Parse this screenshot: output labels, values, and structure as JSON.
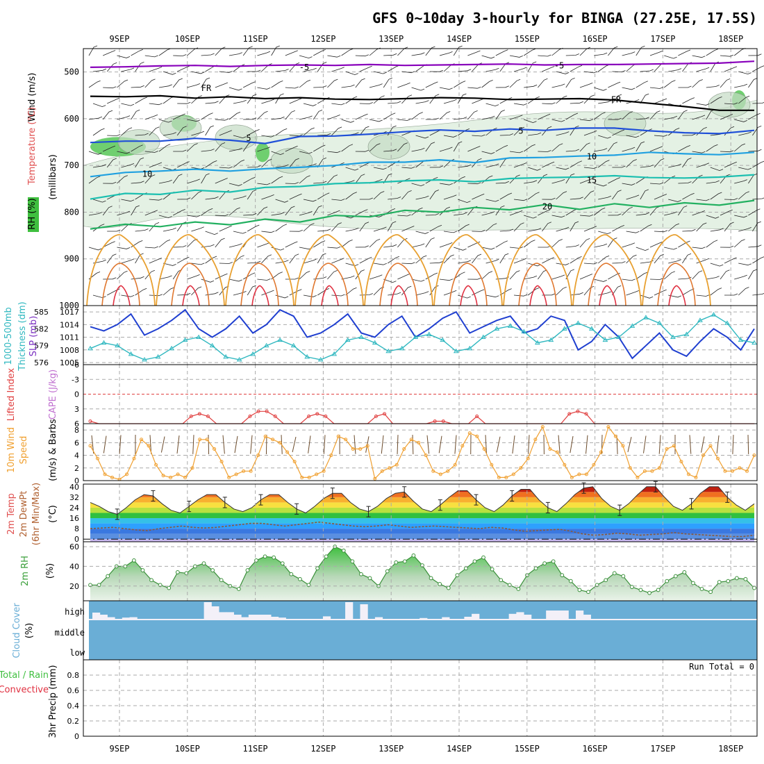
{
  "title": "GFS 0~10day 3-hourly for BINGA (27.25E, 17.5S)",
  "dates": [
    "9SEP",
    "10SEP",
    "11SEP",
    "12SEP",
    "13SEP",
    "14SEP",
    "15SEP",
    "16SEP",
    "17SEP",
    "18SEP"
  ],
  "colors": {
    "purple": "#8800bb",
    "black": "#000000",
    "blue5": "#1f4fd8",
    "blue10": "#1fa0e0",
    "teal15": "#1bbfb0",
    "green20": "#22b060",
    "orange": "#e8a030",
    "red": "#e03040",
    "slp": "#1f3fd0",
    "thick": "#30b8c0",
    "wind": "#f0a030",
    "rh": "#40b040",
    "cloud": "#6aaed6"
  },
  "chart_data": [
    {
      "name": "upper_air",
      "type": "heatmap",
      "ylabel_parts": [
        "Wind (m/s)",
        "Temperature (°C)",
        "RH (%)",
        "(millibars)"
      ],
      "yticks": [
        500,
        600,
        700,
        800,
        900,
        1000
      ],
      "ylim": [
        1000,
        450
      ],
      "contour_labels": [
        "-5",
        "FR",
        "5",
        "10",
        "15",
        "20"
      ],
      "isotherm_levels_mb": {
        "minus5": [
          490,
          489,
          487,
          486,
          488,
          486,
          485,
          486,
          484,
          486,
          485,
          484,
          483,
          485,
          484,
          484,
          483,
          482,
          481,
          477
        ],
        "freezing": [
          552,
          553,
          551,
          556,
          553,
          557,
          555,
          558,
          559,
          557,
          555,
          556,
          559,
          558,
          557,
          560,
          567,
          574,
          582,
          582
        ],
        "plus5": [
          651,
          648,
          648,
          642,
          646,
          653,
          638,
          637,
          633,
          628,
          624,
          627,
          622,
          625,
          620,
          620,
          626,
          630,
          632,
          625
        ],
        "plus10": [
          724,
          715,
          712,
          708,
          712,
          707,
          704,
          700,
          693,
          693,
          688,
          694,
          684,
          683,
          680,
          678,
          672,
          675,
          677,
          672
        ],
        "plus15": [
          772,
          760,
          762,
          753,
          757,
          747,
          745,
          739,
          737,
          733,
          731,
          735,
          728,
          726,
          725,
          722,
          726,
          727,
          725,
          720
        ],
        "plus20": [
          836,
          826,
          831,
          821,
          827,
          815,
          821,
          807,
          810,
          796,
          800,
          790,
          795,
          784,
          794,
          782,
          790,
          780,
          785,
          775
        ]
      }
    },
    {
      "name": "slp_thickness",
      "type": "line",
      "ylabel_parts": [
        "1000-500mb",
        "Thickness (dm)",
        "SLP (mb)"
      ],
      "yticks_left": [
        576,
        579,
        582,
        585
      ],
      "yticks_right": [
        1005,
        1008,
        1011,
        1014,
        1017
      ],
      "ylim_slp": [
        1004.5,
        1018.5
      ],
      "series": [
        {
          "name": "SLP (mb)",
          "values": [
            1013.5,
            1012.5,
            1014,
            1016.5,
            1011.5,
            1013,
            1015,
            1017.5,
            1013,
            1011,
            1013,
            1016,
            1012,
            1014,
            1017.5,
            1016,
            1011,
            1012,
            1014,
            1016.5,
            1012,
            1011,
            1014,
            1016,
            1011,
            1013,
            1015.5,
            1017,
            1012,
            1013.5,
            1015,
            1016,
            1012,
            1013,
            1016,
            1015,
            1008,
            1010,
            1014,
            1011,
            1006,
            1009,
            1012,
            1008,
            1006.5,
            1010,
            1013,
            1011,
            1008,
            1013
          ]
        },
        {
          "name": "Thickness (dm)",
          "values": [
            578.5,
            579.5,
            579,
            577.5,
            576.5,
            577,
            578.5,
            580,
            580.5,
            579,
            577,
            576.5,
            577.5,
            579,
            580,
            579,
            577,
            576.5,
            577.5,
            580,
            580.5,
            579.5,
            578,
            578.5,
            580.5,
            581,
            580,
            578,
            578.5,
            580.5,
            582,
            582.5,
            581.5,
            579.5,
            580,
            582,
            583,
            582,
            580,
            580.5,
            582.5,
            584,
            583,
            580.5,
            581,
            583.5,
            584.5,
            583,
            580,
            579.5
          ]
        }
      ]
    },
    {
      "name": "cape_li",
      "type": "line",
      "ylabel_parts": [
        "Lifted Index",
        "CAPE (J/kg)"
      ],
      "yticks": [
        "-6",
        "-3",
        "0",
        "3",
        "6"
      ],
      "ylim": [
        -6,
        6
      ],
      "series": [
        {
          "name": "Lifted Index",
          "values": [
            5.5,
            6,
            6,
            6,
            6,
            6,
            6,
            6,
            6,
            6,
            6,
            6,
            4.5,
            4,
            4.5,
            6,
            6,
            6,
            6,
            4.5,
            3.5,
            3.5,
            4.5,
            6,
            6,
            6,
            4.5,
            4,
            4.5,
            6,
            6,
            6,
            6,
            6,
            4.5,
            4,
            6,
            6,
            6,
            6,
            6,
            5.5,
            5.5,
            6,
            6,
            6,
            4.5,
            6,
            6,
            6,
            6,
            6,
            6,
            6,
            6,
            6,
            6,
            4,
            3.5,
            4,
            6,
            6,
            6,
            6,
            6,
            6,
            6,
            6,
            6,
            6,
            6,
            6,
            6,
            6,
            6,
            6,
            6,
            6,
            6,
            6
          ]
        }
      ]
    },
    {
      "name": "wind10m",
      "type": "line",
      "ylabel_parts": [
        "10m Wind",
        "Speed",
        "(m/s) & Barbs"
      ],
      "yticks": [
        0,
        2,
        4,
        6,
        8
      ],
      "ylim": [
        0,
        9
      ],
      "series": [
        {
          "name": "10m Wind Speed",
          "values": [
            5.5,
            3.5,
            1,
            0.5,
            0.2,
            1,
            3.5,
            6.5,
            5.5,
            2.5,
            0.8,
            0.5,
            1,
            0.5,
            2,
            6.5,
            6.5,
            5,
            3,
            0.5,
            1,
            1.5,
            1.5,
            4,
            7,
            6.5,
            6,
            4.5,
            3,
            0.5,
            0.5,
            1,
            1.5,
            4,
            7,
            6.5,
            5,
            5,
            5.5,
            0.3,
            1.5,
            2,
            2.5,
            5,
            6.5,
            6,
            4,
            1.5,
            1,
            1.5,
            2.5,
            5.5,
            7.5,
            7,
            5,
            2.5,
            0.5,
            0.5,
            1,
            2,
            3.5,
            6.5,
            8.5,
            5,
            4.5,
            2.5,
            0.5,
            1,
            1,
            2.5,
            4.5,
            8.5,
            7,
            5.5,
            2,
            0.5,
            1.5,
            1.5,
            2,
            5,
            5.5,
            3,
            1,
            0.5,
            4,
            5.5,
            3.5,
            1.5,
            1.5,
            2,
            1.5,
            4
          ]
        }
      ]
    },
    {
      "name": "temp2m",
      "type": "area",
      "ylabel_parts": [
        "2m Temp",
        "2m DewPt",
        "(6hr Min/Max)",
        "(°C)"
      ],
      "yticks": [
        0,
        8,
        16,
        24,
        32,
        40
      ],
      "ylim": [
        -2,
        42
      ],
      "series": [
        {
          "name": "2m Temp",
          "values": [
            28,
            25,
            21,
            19,
            24,
            30,
            34,
            33,
            27,
            22,
            20,
            25,
            30,
            34,
            34,
            28,
            23,
            21,
            24,
            30,
            34,
            34,
            28,
            23,
            20,
            25,
            31,
            35,
            35,
            28,
            23,
            21,
            25,
            31,
            35,
            36,
            29,
            23,
            21,
            26,
            32,
            37,
            37,
            30,
            24,
            21,
            26,
            33,
            38,
            38,
            30,
            24,
            21,
            27,
            34,
            39,
            40,
            31,
            25,
            22,
            27,
            34,
            40,
            40,
            32,
            25,
            22,
            27,
            35,
            40,
            40,
            32,
            26,
            22,
            27
          ]
        },
        {
          "name": "2m DewPt",
          "values": [
            8,
            8.5,
            9,
            8,
            7,
            6.5,
            8,
            9,
            10,
            9,
            8.5,
            9,
            10,
            11,
            12,
            12,
            11,
            10,
            11,
            12,
            13,
            12,
            11,
            10,
            9.5,
            10,
            11,
            10,
            9,
            9.5,
            10,
            9.5,
            9,
            8.5,
            8,
            9,
            8.5,
            7,
            6,
            6.5,
            7,
            7.5,
            6,
            4,
            3,
            3.5,
            4.5,
            4,
            3,
            3.5,
            4,
            5,
            4,
            3.5,
            3,
            2.5,
            2,
            2,
            3
          ]
        }
      ]
    },
    {
      "name": "rh2m",
      "type": "area",
      "ylabel_parts": [
        "2m RH",
        "(%)"
      ],
      "yticks": [
        20,
        40,
        60
      ],
      "ylim": [
        5,
        65
      ],
      "series": [
        {
          "name": "2m RH",
          "values": [
            21,
            21,
            30,
            40,
            40,
            46,
            36,
            26,
            21,
            18,
            34,
            33,
            40,
            43,
            36,
            26,
            20,
            17,
            36,
            46,
            50,
            49,
            43,
            32,
            27,
            21,
            38,
            50,
            60,
            56,
            45,
            32,
            28,
            20,
            35,
            44,
            45,
            51,
            41,
            28,
            22,
            18,
            31,
            38,
            45,
            49,
            37,
            26,
            21,
            17,
            31,
            38,
            43,
            45,
            31,
            25,
            16,
            14,
            21,
            26,
            33,
            30,
            19,
            16,
            13,
            16,
            25,
            30,
            34,
            23,
            17,
            14,
            24,
            25,
            28,
            27,
            18
          ]
        }
      ]
    },
    {
      "name": "cloud",
      "type": "bar",
      "ylabel_parts": [
        "Cloud Cover",
        "(%)"
      ],
      "ytick_labels": [
        "high",
        "middle",
        "low"
      ],
      "series": [
        {
          "name": "high",
          "values": [
            15,
            10,
            4,
            0,
            3,
            4,
            0,
            0,
            0,
            0,
            0,
            0,
            0,
            0,
            0,
            40,
            30,
            16,
            16,
            10,
            4,
            10,
            10,
            10,
            5,
            3,
            0,
            0,
            0,
            0,
            0,
            6,
            0,
            0,
            40,
            0,
            35,
            0,
            4,
            0,
            0,
            0,
            0,
            0,
            2,
            0,
            0,
            4,
            0,
            0,
            5,
            12,
            0,
            0,
            0,
            0,
            12,
            16,
            10,
            0,
            0,
            20,
            20,
            20,
            0,
            20,
            10,
            0,
            0,
            0,
            0,
            0,
            0,
            0,
            0,
            0,
            0,
            0,
            0,
            0,
            0,
            0,
            0,
            0,
            0,
            0,
            0,
            0,
            0
          ]
        },
        {
          "name": "middle",
          "values": []
        },
        {
          "name": "low",
          "values": []
        }
      ]
    },
    {
      "name": "precip",
      "type": "bar",
      "ylabel_parts": [
        "Total / Rain",
        "Convective",
        "3hr Precip (mm)"
      ],
      "yticks": [
        "0",
        "0.2",
        "0.4",
        "0.6",
        "0.8"
      ],
      "ylim": [
        0,
        1
      ],
      "annotation": "Run Total = 0",
      "series": [
        {
          "name": "Total / Rain",
          "values": []
        },
        {
          "name": "Convective",
          "values": []
        }
      ]
    }
  ]
}
